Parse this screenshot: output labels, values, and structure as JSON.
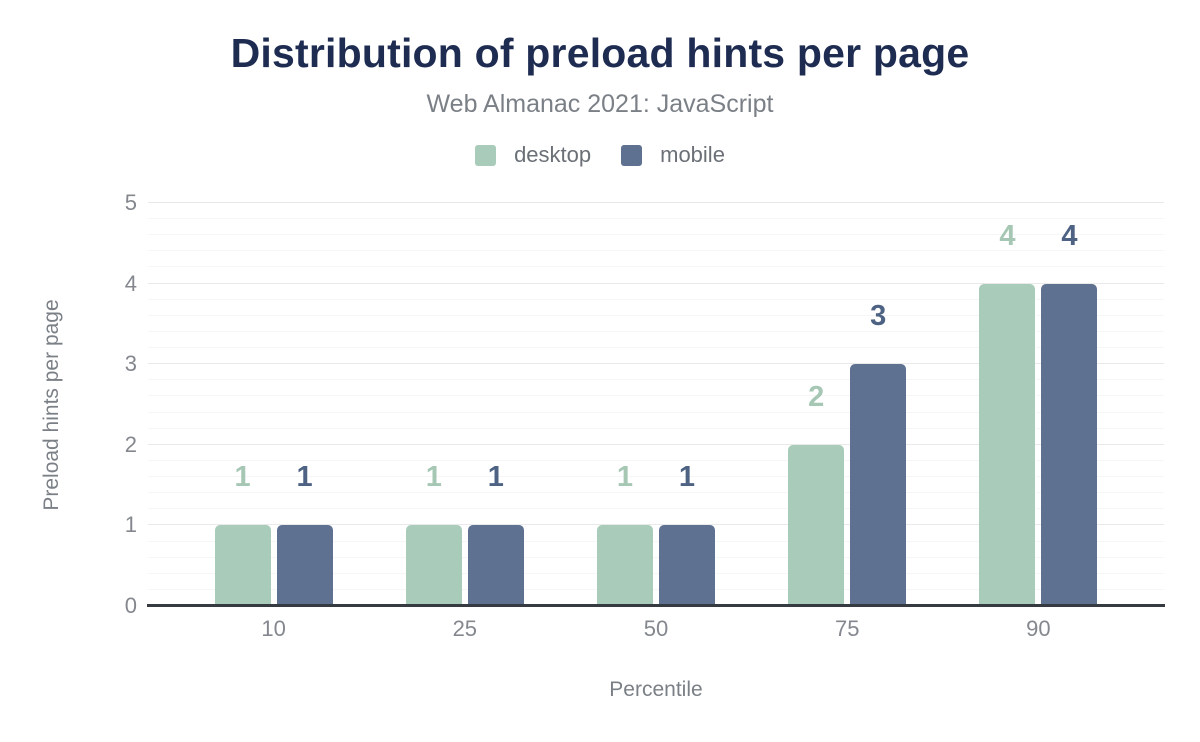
{
  "header": {
    "title": "Distribution of preload hints per page",
    "subtitle": "Web Almanac 2021: JavaScript"
  },
  "chart_data": {
    "type": "bar",
    "title": "Distribution of preload hints per page",
    "subtitle": "Web Almanac 2021: JavaScript",
    "categories": [
      "10",
      "25",
      "50",
      "75",
      "90"
    ],
    "series": [
      {
        "name": "desktop",
        "color": "#a9cbb9",
        "label_color": "#a5c7b4",
        "values": [
          1,
          1,
          1,
          2,
          4
        ]
      },
      {
        "name": "mobile",
        "color": "#5f7190",
        "label_color": "#4e6384",
        "values": [
          1,
          1,
          1,
          3,
          4
        ]
      }
    ],
    "xlabel": "Percentile",
    "ylabel": "Preload hints per page",
    "ylim": [
      0,
      5
    ],
    "yticks": [
      0,
      1,
      2,
      3,
      4,
      5
    ],
    "minor_grid_step": 0.2,
    "grid": "horizontal",
    "legend_position": "top",
    "data_labels": true
  },
  "colors": {
    "background": "#ffffff",
    "title": "#1e2c52",
    "subtitle": "#7b8087",
    "axis_title": "#7b8087",
    "tick_label": "#84888e",
    "legend_label": "#6b7077",
    "axis_line": "#363b42",
    "grid_major": "#e9e9e9",
    "grid_minor": "#f6f6f6"
  }
}
